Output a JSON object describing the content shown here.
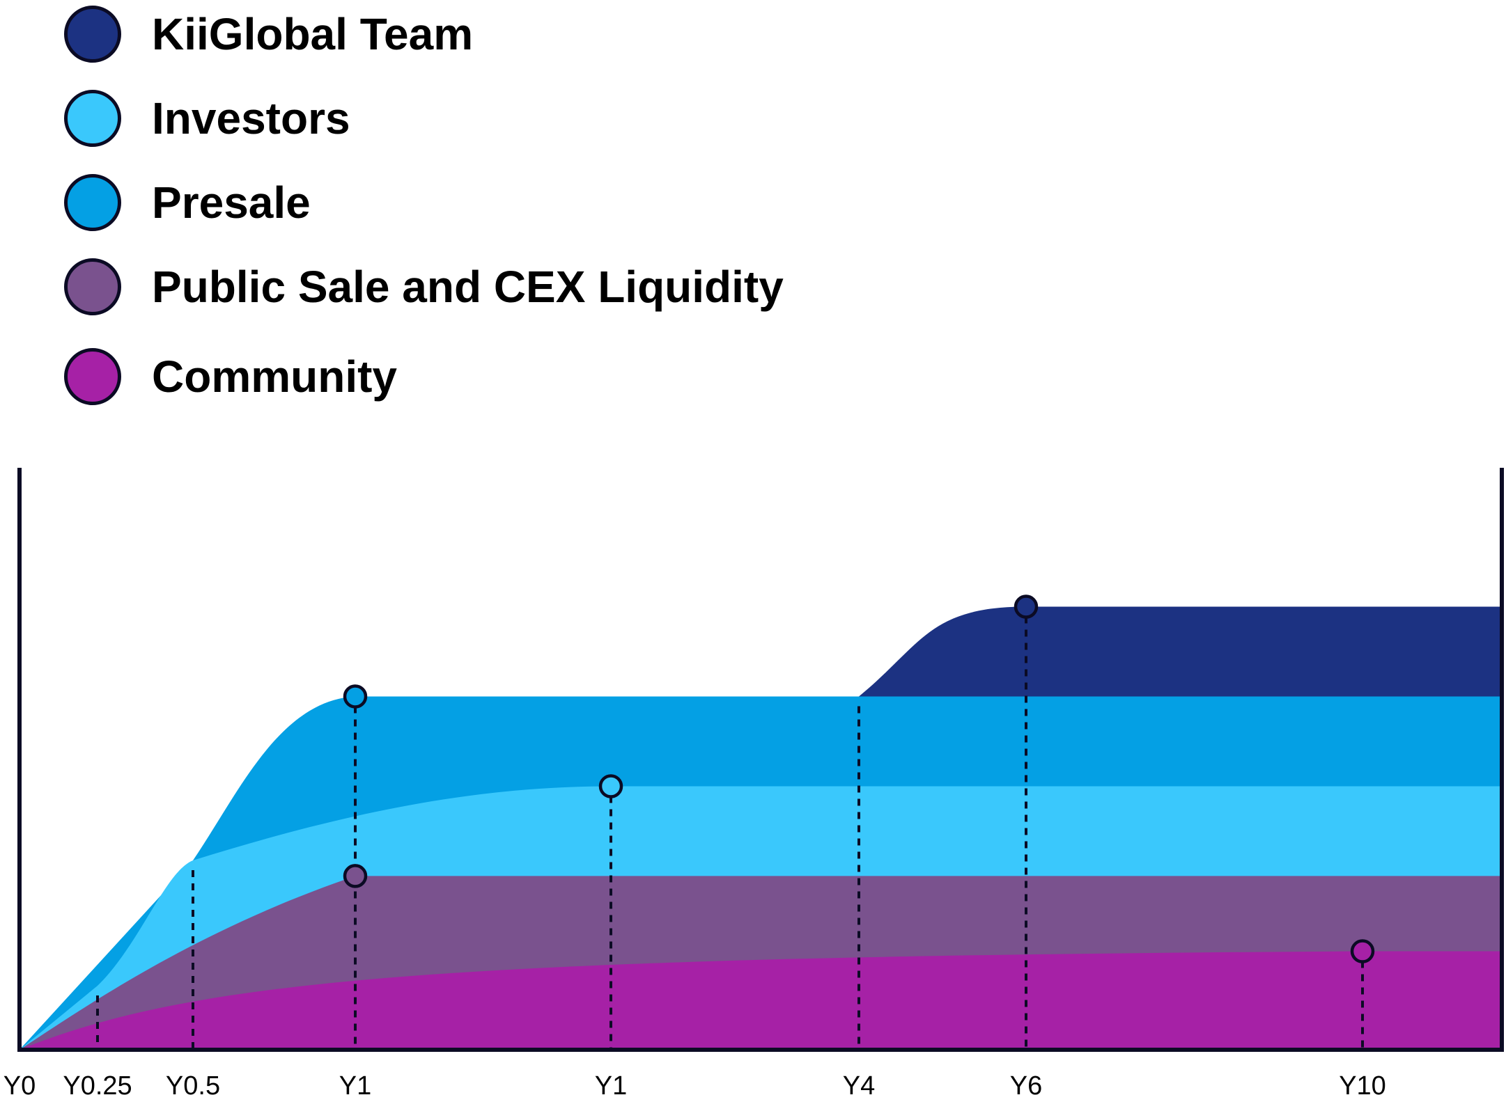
{
  "legend": [
    {
      "label": "KiiGlobal Team",
      "color": "#1c3282"
    },
    {
      "label": "Investors",
      "color": "#3ac8fc"
    },
    {
      "label": "Presale",
      "color": "#04a0e4"
    },
    {
      "label": "Public Sale and CEX Liquidity",
      "color": "#7a528e"
    },
    {
      "label": "Community",
      "color": "#a621a6"
    }
  ],
  "chart_data": {
    "type": "area",
    "x_ticks": [
      "Y0",
      "Y0.25",
      "Y0.5",
      "Y1",
      "Y1",
      "Y4",
      "Y6",
      "Y10"
    ],
    "stacking": "cumulative",
    "series": [
      {
        "name": "Community",
        "color": "#a621a6",
        "cumulative_top_fraction": 0.17,
        "full_unlock_at": "Y10"
      },
      {
        "name": "Public Sale and CEX Liquidity",
        "color": "#7a528e",
        "cumulative_top_fraction": 0.3,
        "full_unlock_at": "Y1"
      },
      {
        "name": "Investors",
        "color": "#3ac8fc",
        "cumulative_top_fraction": 0.455,
        "full_unlock_at": "Y1",
        "unlock_start": "Y0.25"
      },
      {
        "name": "Presale",
        "color": "#04a0e4",
        "cumulative_top_fraction": 0.61,
        "full_unlock_at": "Y1",
        "unlock_start": "Y0.5"
      },
      {
        "name": "KiiGlobal Team",
        "color": "#1c3282",
        "cumulative_top_fraction": 0.765,
        "full_unlock_at": "Y6",
        "unlock_start": "Y4"
      }
    ]
  }
}
